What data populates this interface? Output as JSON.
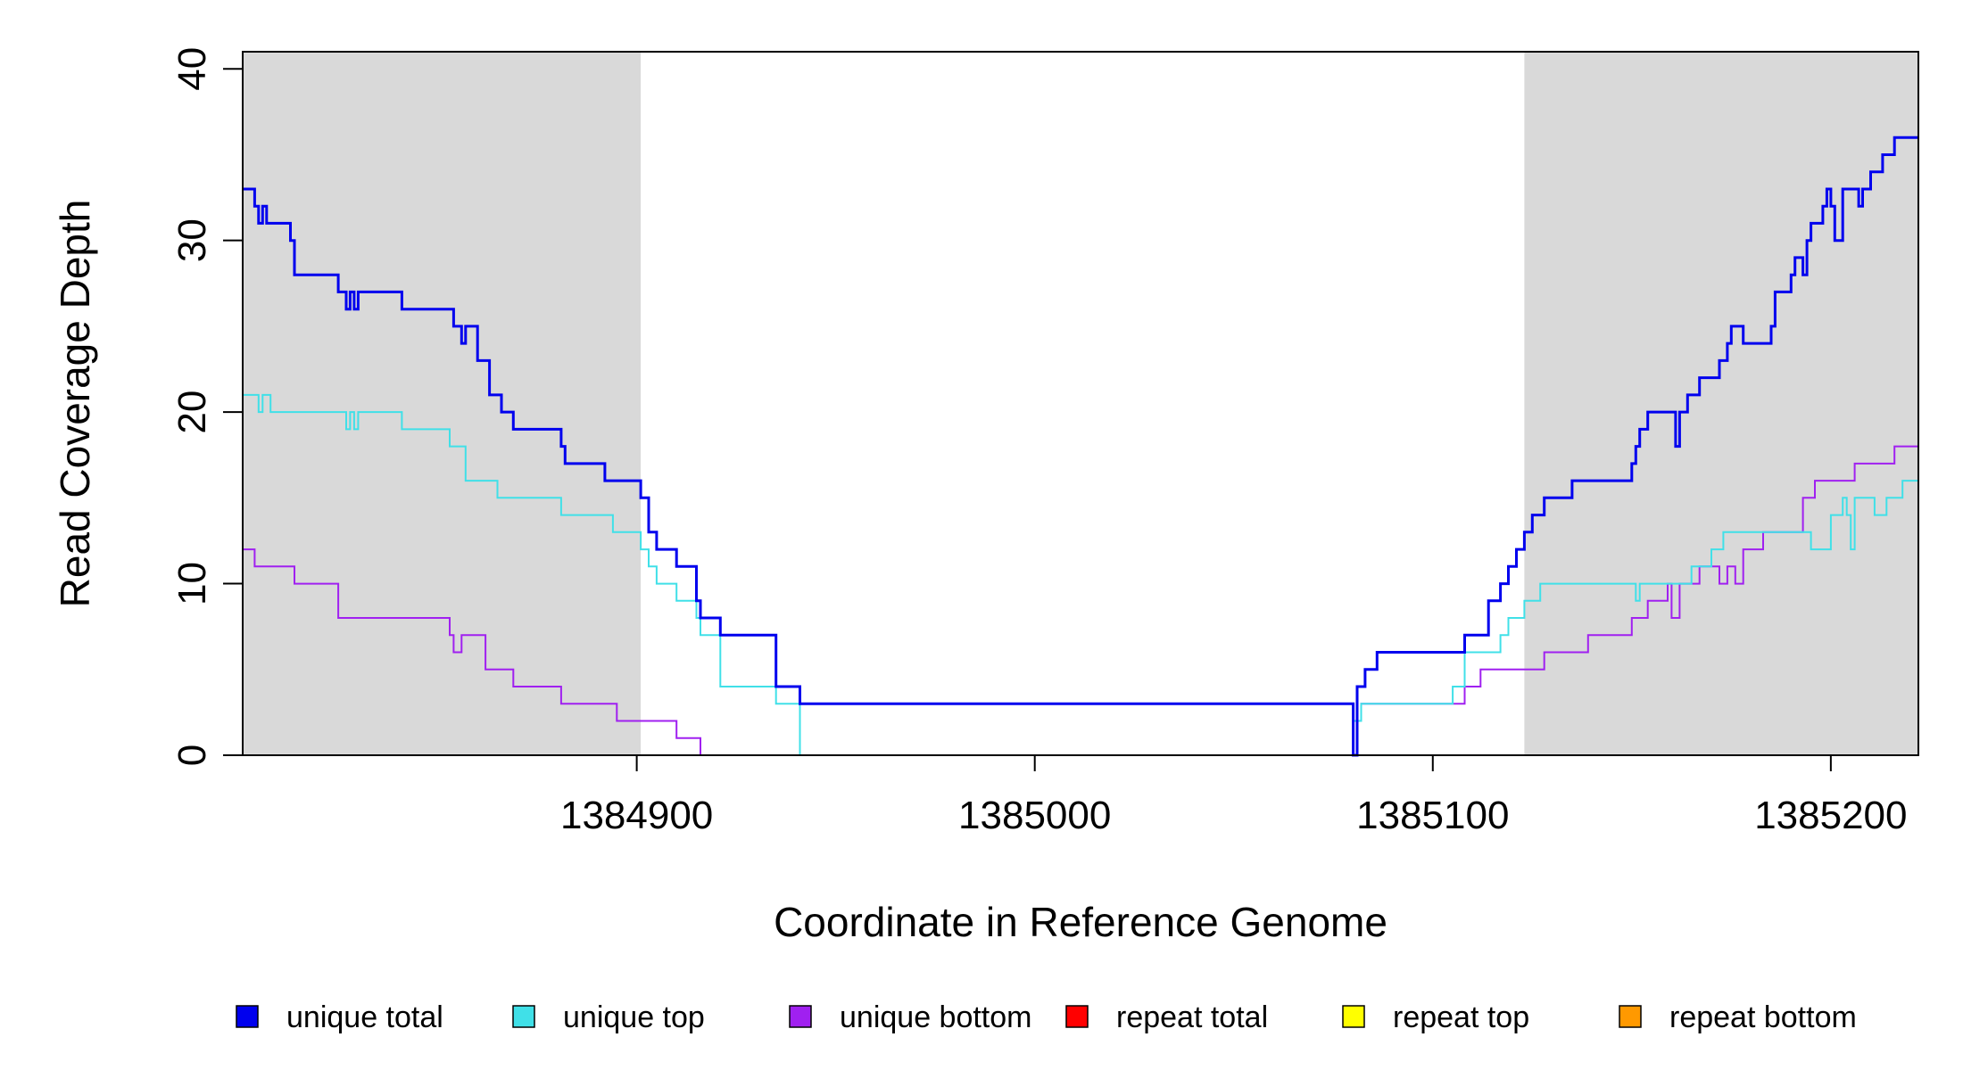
{
  "chart_data": {
    "type": "line",
    "title": "",
    "xlabel": "Coordinate in Reference Genome",
    "ylabel": "Read Coverage Depth",
    "xlim": [
      1384801,
      1385222
    ],
    "ylim": [
      0,
      41
    ],
    "x_ticks": [
      1384900,
      1385000,
      1385100,
      1385200
    ],
    "x_tick_labels": [
      "1384900",
      "1385000",
      "1385100",
      "1385200"
    ],
    "y_ticks": [
      0,
      10,
      20,
      30,
      40
    ],
    "y_tick_labels": [
      "0",
      "10",
      "20",
      "30",
      "40"
    ],
    "grid": false,
    "legend_position": "bottom",
    "shaded_regions": [
      {
        "x0": 1384801,
        "x1": 1384901,
        "color": "#d9d9d9"
      },
      {
        "x0": 1385123,
        "x1": 1385222,
        "color": "#d9d9d9"
      }
    ],
    "legend": [
      {
        "label": "unique total",
        "color": "#0000ee"
      },
      {
        "label": "unique top",
        "color": "#40e0e8"
      },
      {
        "label": "unique bottom",
        "color": "#a020f0"
      },
      {
        "label": "repeat total",
        "color": "#ff0000"
      },
      {
        "label": "repeat top",
        "color": "#ffff00"
      },
      {
        "label": "repeat bottom",
        "color": "#ff9900"
      }
    ],
    "series": [
      {
        "name": "unique total",
        "color": "#0000ee",
        "x": [
          1384801,
          1384804,
          1384805,
          1384806,
          1384807,
          1384808,
          1384813,
          1384814,
          1384825,
          1384827,
          1384828,
          1384829,
          1384830,
          1384831,
          1384841,
          1384853,
          1384854,
          1384856,
          1384857,
          1384860,
          1384863,
          1384866,
          1384869,
          1384881,
          1384882,
          1384891,
          1384892,
          1384901,
          1384903,
          1384905,
          1384910,
          1384915,
          1384916,
          1384921,
          1384935,
          1384941,
          1385080,
          1385081,
          1385083,
          1385086,
          1385105,
          1385108,
          1385114,
          1385117,
          1385119,
          1385121,
          1385123,
          1385125,
          1385128,
          1385135,
          1385150,
          1385151,
          1385152,
          1385154,
          1385160,
          1385161,
          1385162,
          1385164,
          1385167,
          1385172,
          1385174,
          1385175,
          1385178,
          1385185,
          1385186,
          1385190,
          1385191,
          1385193,
          1385194,
          1385195,
          1385198,
          1385199,
          1385200,
          1385201,
          1385203,
          1385207,
          1385208,
          1385210,
          1385213,
          1385216,
          1385222
        ],
        "values": [
          33,
          32,
          31,
          32,
          31,
          31,
          30,
          28,
          27,
          26,
          27,
          26,
          27,
          27,
          26,
          26,
          25,
          24,
          25,
          23,
          21,
          20,
          19,
          18,
          17,
          17,
          16,
          15,
          13,
          12,
          11,
          9,
          8,
          7,
          4,
          3,
          0,
          4,
          5,
          6,
          6,
          7,
          9,
          10,
          11,
          12,
          13,
          14,
          15,
          16,
          17,
          18,
          19,
          20,
          20,
          18,
          20,
          21,
          22,
          23,
          24,
          25,
          24,
          25,
          27,
          28,
          29,
          28,
          30,
          31,
          32,
          33,
          32,
          30,
          33,
          32,
          33,
          34,
          35,
          36,
          36
        ]
      },
      {
        "name": "unique top",
        "color": "#40e0e8",
        "x": [
          1384801,
          1384805,
          1384806,
          1384807,
          1384808,
          1384827,
          1384828,
          1384829,
          1384830,
          1384831,
          1384841,
          1384853,
          1384857,
          1384865,
          1384881,
          1384894,
          1384901,
          1384903,
          1384905,
          1384910,
          1384915,
          1384916,
          1384921,
          1384935,
          1384941,
          1385080,
          1385082,
          1385083,
          1385086,
          1385105,
          1385108,
          1385117,
          1385119,
          1385123,
          1385127,
          1385150,
          1385151,
          1385152,
          1385160,
          1385161,
          1385165,
          1385170,
          1385172,
          1385173,
          1385176,
          1385181,
          1385195,
          1385200,
          1385203,
          1385204,
          1385205,
          1385206,
          1385210,
          1385211,
          1385214,
          1385218,
          1385222
        ],
        "values": [
          21,
          20,
          21,
          21,
          20,
          19,
          20,
          19,
          20,
          20,
          19,
          18,
          16,
          15,
          14,
          13,
          12,
          11,
          10,
          9,
          8,
          7,
          4,
          3,
          0,
          2,
          3,
          3,
          3,
          4,
          6,
          7,
          8,
          9,
          10,
          10,
          9,
          10,
          10,
          10,
          11,
          12,
          12,
          13,
          13,
          13,
          12,
          14,
          15,
          14,
          12,
          15,
          15,
          14,
          15,
          16,
          17
        ]
      },
      {
        "name": "unique bottom",
        "color": "#a020f0",
        "x": [
          1384801,
          1384804,
          1384813,
          1384814,
          1384825,
          1384853,
          1384854,
          1384856,
          1384862,
          1384869,
          1384881,
          1384895,
          1384910,
          1384916,
          1384941,
          1385080,
          1385082,
          1385104,
          1385106,
          1385108,
          1385112,
          1385120,
          1385128,
          1385139,
          1385150,
          1385154,
          1385159,
          1385160,
          1385162,
          1385167,
          1385172,
          1385174,
          1385176,
          1385178,
          1385180,
          1385183,
          1385188,
          1385193,
          1385196,
          1385206,
          1385216,
          1385222
        ],
        "values": [
          12,
          11,
          11,
          10,
          8,
          7,
          6,
          7,
          5,
          4,
          3,
          2,
          1,
          0,
          0,
          2,
          3,
          3,
          3,
          4,
          5,
          5,
          6,
          7,
          8,
          9,
          10,
          8,
          10,
          11,
          10,
          11,
          10,
          12,
          12,
          13,
          13,
          15,
          16,
          17,
          18,
          19
        ]
      },
      {
        "name": "repeat total",
        "color": "#ff0000",
        "x": [
          1384801,
          1385222
        ],
        "values": [
          0,
          0
        ]
      },
      {
        "name": "repeat top",
        "color": "#ffff00",
        "x": [
          1384801,
          1385222
        ],
        "values": [
          0,
          0
        ]
      },
      {
        "name": "repeat bottom",
        "color": "#ff9900",
        "x": [
          1384801,
          1385222
        ],
        "values": [
          0,
          0
        ]
      }
    ]
  }
}
